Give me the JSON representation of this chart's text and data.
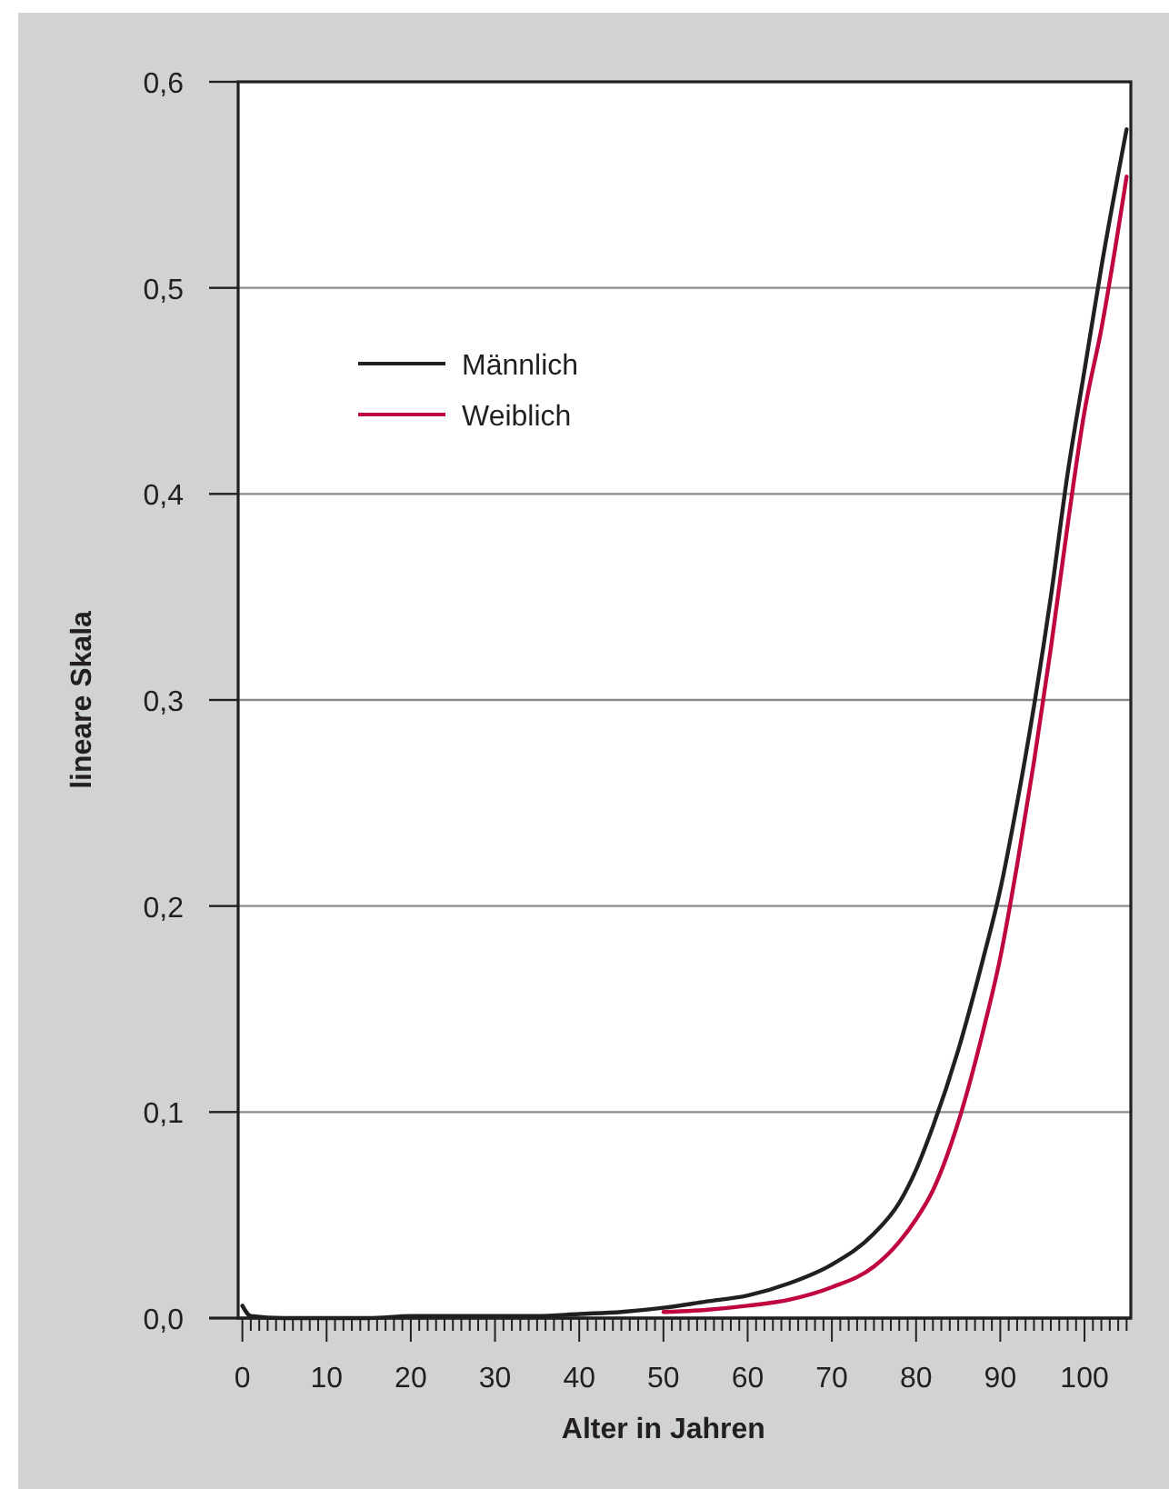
{
  "chart_data": {
    "type": "line",
    "xlabel": "Alter in Jahren",
    "ylabel": "lineare Skala",
    "xlim": [
      -0.5,
      105.5
    ],
    "ylim": [
      0,
      0.6
    ],
    "yticks": [
      {
        "value": 0,
        "label": "0,0"
      },
      {
        "value": 0.1,
        "label": "0,1"
      },
      {
        "value": 0.2,
        "label": "0,2"
      },
      {
        "value": 0.3,
        "label": "0,3"
      },
      {
        "value": 0.4,
        "label": "0,4"
      },
      {
        "value": 0.5,
        "label": "0,5"
      },
      {
        "value": 0.6,
        "label": "0,6"
      }
    ],
    "xticks": [
      0,
      {
        "value": 1,
        "label": null
      },
      {
        "value": 2,
        "label": null
      },
      {
        "value": 3,
        "label": null
      },
      {
        "value": 4,
        "label": null
      },
      {
        "value": 5,
        "label": null
      },
      {
        "value": 6,
        "label": null
      },
      {
        "value": 7,
        "label": null
      },
      {
        "value": 8,
        "label": null
      },
      {
        "value": 9,
        "label": null
      },
      10,
      {
        "value": 11,
        "label": null
      },
      {
        "value": 12,
        "label": null
      },
      {
        "value": 13,
        "label": null
      },
      {
        "value": 14,
        "label": null
      },
      {
        "value": 15,
        "label": null
      },
      {
        "value": 16,
        "label": null
      },
      {
        "value": 17,
        "label": null
      },
      {
        "value": 18,
        "label": null
      },
      {
        "value": 19,
        "label": null
      },
      20,
      {
        "value": 21,
        "label": null
      },
      {
        "value": 22,
        "label": null
      },
      {
        "value": 23,
        "label": null
      },
      {
        "value": 24,
        "label": null
      },
      {
        "value": 25,
        "label": null
      },
      {
        "value": 26,
        "label": null
      },
      {
        "value": 27,
        "label": null
      },
      {
        "value": 28,
        "label": null
      },
      {
        "value": 29,
        "label": null
      },
      30,
      {
        "value": 31,
        "label": null
      },
      {
        "value": 32,
        "label": null
      },
      {
        "value": 33,
        "label": null
      },
      {
        "value": 34,
        "label": null
      },
      {
        "value": 35,
        "label": null
      },
      {
        "value": 36,
        "label": null
      },
      {
        "value": 37,
        "label": null
      },
      {
        "value": 38,
        "label": null
      },
      {
        "value": 39,
        "label": null
      },
      40,
      {
        "value": 41,
        "label": null
      },
      {
        "value": 42,
        "label": null
      },
      {
        "value": 43,
        "label": null
      },
      {
        "value": 44,
        "label": null
      },
      {
        "value": 45,
        "label": null
      },
      {
        "value": 46,
        "label": null
      },
      {
        "value": 47,
        "label": null
      },
      {
        "value": 48,
        "label": null
      },
      {
        "value": 49,
        "label": null
      },
      50,
      {
        "value": 51,
        "label": null
      },
      {
        "value": 52,
        "label": null
      },
      {
        "value": 53,
        "label": null
      },
      {
        "value": 54,
        "label": null
      },
      {
        "value": 55,
        "label": null
      },
      {
        "value": 56,
        "label": null
      },
      {
        "value": 57,
        "label": null
      },
      {
        "value": 58,
        "label": null
      },
      {
        "value": 59,
        "label": null
      },
      60,
      {
        "value": 61,
        "label": null
      },
      {
        "value": 62,
        "label": null
      },
      {
        "value": 63,
        "label": null
      },
      {
        "value": 64,
        "label": null
      },
      {
        "value": 65,
        "label": null
      },
      {
        "value": 66,
        "label": null
      },
      {
        "value": 67,
        "label": null
      },
      {
        "value": 68,
        "label": null
      },
      {
        "value": 69,
        "label": null
      },
      70,
      {
        "value": 71,
        "label": null
      },
      {
        "value": 72,
        "label": null
      },
      {
        "value": 73,
        "label": null
      },
      {
        "value": 74,
        "label": null
      },
      {
        "value": 75,
        "label": null
      },
      {
        "value": 76,
        "label": null
      },
      {
        "value": 77,
        "label": null
      },
      {
        "value": 78,
        "label": null
      },
      {
        "value": 79,
        "label": null
      },
      80,
      {
        "value": 81,
        "label": null
      },
      {
        "value": 82,
        "label": null
      },
      {
        "value": 83,
        "label": null
      },
      {
        "value": 84,
        "label": null
      },
      {
        "value": 85,
        "label": null
      },
      {
        "value": 86,
        "label": null
      },
      {
        "value": 87,
        "label": null
      },
      {
        "value": 88,
        "label": null
      },
      {
        "value": 89,
        "label": null
      },
      90,
      {
        "value": 91,
        "label": null
      },
      {
        "value": 92,
        "label": null
      },
      {
        "value": 93,
        "label": null
      },
      {
        "value": 94,
        "label": null
      },
      {
        "value": 95,
        "label": null
      },
      {
        "value": 96,
        "label": null
      },
      {
        "value": 97,
        "label": null
      },
      {
        "value": 98,
        "label": null
      },
      {
        "value": 99,
        "label": null
      },
      100,
      {
        "value": 101,
        "label": null
      },
      {
        "value": 102,
        "label": null
      },
      {
        "value": 103,
        "label": null
      },
      {
        "value": 104,
        "label": null
      },
      {
        "value": 105,
        "label": null
      }
    ],
    "grid": "y",
    "legend": "top left",
    "line_style": "solid",
    "x": [
      0,
      1,
      5,
      10,
      15,
      20,
      25,
      30,
      35,
      40,
      45,
      50,
      55,
      60,
      65,
      70,
      75,
      78,
      80,
      82,
      85,
      88,
      90,
      92,
      94,
      96,
      98,
      100,
      102,
      105
    ],
    "series": [
      {
        "name": "Männlich",
        "color": "#231f20",
        "values": [
          0.006,
          0.001,
          0,
          0,
          0,
          0.001,
          0.001,
          0.001,
          0.001,
          0.002,
          0.003,
          0.005,
          0.008,
          0.011,
          0.017,
          0.026,
          0.041,
          0.056,
          0.072,
          0.093,
          0.13,
          0.175,
          0.208,
          0.25,
          0.297,
          0.35,
          0.41,
          0.46,
          0.51,
          0.577
        ]
      },
      {
        "name": "Weiblich",
        "color": "#c0063f",
        "values": [
          null,
          null,
          null,
          null,
          null,
          null,
          null,
          null,
          null,
          null,
          null,
          0.003,
          0.004,
          0.006,
          0.009,
          0.015,
          0.025,
          0.037,
          0.048,
          0.062,
          0.095,
          0.14,
          0.175,
          0.22,
          0.27,
          0.325,
          0.385,
          0.44,
          0.48,
          0.554
        ]
      }
    ]
  }
}
